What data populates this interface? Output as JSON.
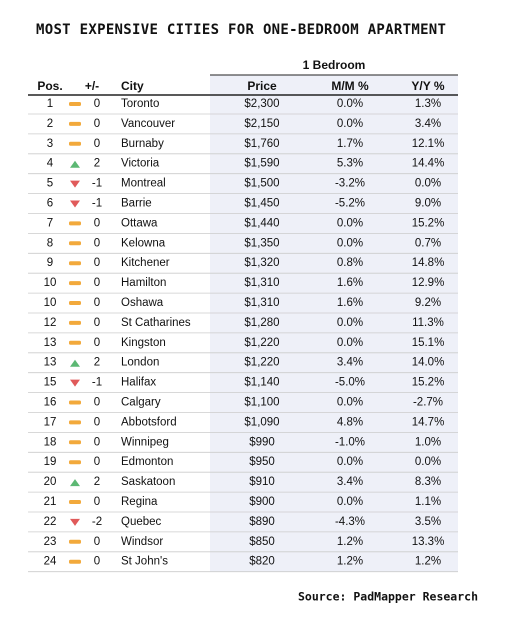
{
  "title": "MOST EXPENSIVE CITIES FOR ONE-BEDROOM APARTMENT",
  "source": "Source: PadMapper Research",
  "table": {
    "group_header": "1 Bedroom",
    "columns": [
      "Pos.",
      "+/-",
      "City",
      "Price",
      "M/M %",
      "Y/Y %"
    ],
    "rows": [
      [
        1,
        0,
        "Toronto",
        "$2,300",
        "0.0%",
        "1.3%"
      ],
      [
        2,
        0,
        "Vancouver",
        "$2,150",
        "0.0%",
        "3.4%"
      ],
      [
        3,
        0,
        "Burnaby",
        "$1,760",
        "1.7%",
        "12.1%"
      ],
      [
        4,
        2,
        "Victoria",
        "$1,590",
        "5.3%",
        "14.4%"
      ],
      [
        5,
        -1,
        "Montreal",
        "$1,500",
        "-3.2%",
        "0.0%"
      ],
      [
        6,
        -1,
        "Barrie",
        "$1,450",
        "-5.2%",
        "9.0%"
      ],
      [
        7,
        0,
        "Ottawa",
        "$1,440",
        "0.0%",
        "15.2%"
      ],
      [
        8,
        0,
        "Kelowna",
        "$1,350",
        "0.0%",
        "0.7%"
      ],
      [
        9,
        0,
        "Kitchener",
        "$1,320",
        "0.8%",
        "14.8%"
      ],
      [
        10,
        0,
        "Hamilton",
        "$1,310",
        "1.6%",
        "12.9%"
      ],
      [
        10,
        0,
        "Oshawa",
        "$1,310",
        "1.6%",
        "9.2%"
      ],
      [
        12,
        0,
        "St Catharines",
        "$1,280",
        "0.0%",
        "11.3%"
      ],
      [
        13,
        0,
        "Kingston",
        "$1,220",
        "0.0%",
        "15.1%"
      ],
      [
        13,
        2,
        "London",
        "$1,220",
        "3.4%",
        "14.0%"
      ],
      [
        15,
        -1,
        "Halifax",
        "$1,140",
        "-5.0%",
        "15.2%"
      ],
      [
        16,
        0,
        "Calgary",
        "$1,100",
        "0.0%",
        "-2.7%"
      ],
      [
        17,
        0,
        "Abbotsford",
        "$1,090",
        "4.8%",
        "14.7%"
      ],
      [
        18,
        0,
        "Winnipeg",
        "$990",
        "-1.0%",
        "1.0%"
      ],
      [
        19,
        0,
        "Edmonton",
        "$950",
        "0.0%",
        "0.0%"
      ],
      [
        20,
        2,
        "Saskatoon",
        "$910",
        "3.4%",
        "8.3%"
      ],
      [
        21,
        0,
        "Regina",
        "$900",
        "0.0%",
        "1.1%"
      ],
      [
        22,
        -2,
        "Quebec",
        "$890",
        "-4.3%",
        "3.5%"
      ],
      [
        23,
        0,
        "Windsor",
        "$850",
        "1.2%",
        "13.3%"
      ],
      [
        24,
        0,
        "St John's",
        "$820",
        "1.2%",
        "1.2%"
      ]
    ]
  }
}
